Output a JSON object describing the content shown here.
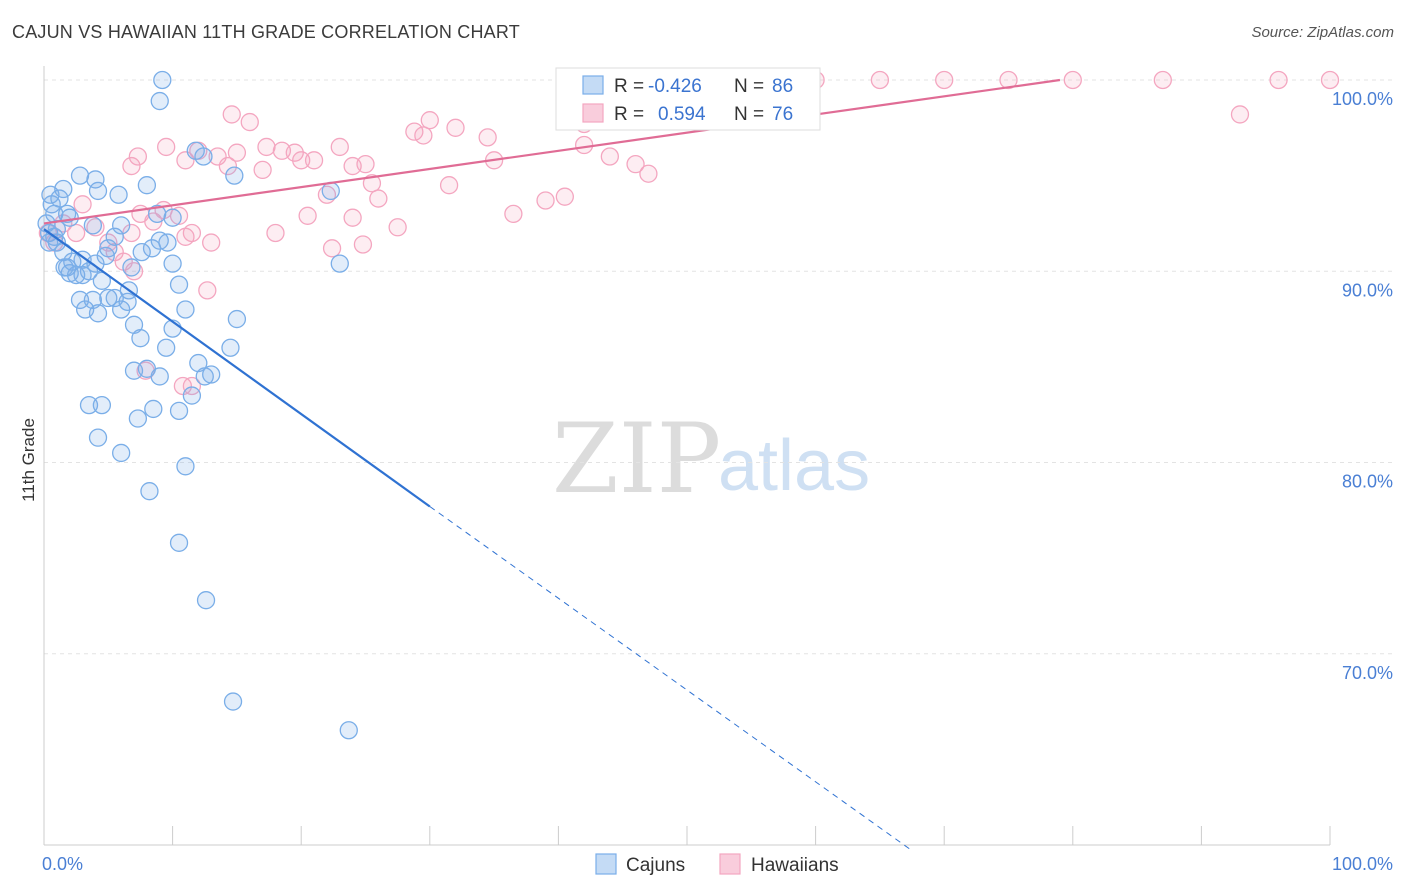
{
  "title": "CAJUN VS HAWAIIAN 11TH GRADE CORRELATION CHART",
  "source": "Source: ZipAtlas.com",
  "watermark": {
    "zip": "ZIP",
    "atlas": "atlas"
  },
  "chart_data": {
    "type": "scatter",
    "title": "CAJUN VS HAWAIIAN 11TH GRADE CORRELATION CHART",
    "xlabel": "",
    "ylabel": "11th Grade",
    "xlim": [
      0,
      100
    ],
    "ylim": [
      60,
      100
    ],
    "x_tick_labels": [
      "0.0%",
      "100.0%"
    ],
    "y_ticks": [
      {
        "value": 100,
        "label": "100.0%"
      },
      {
        "value": 90,
        "label": "90.0%"
      },
      {
        "value": 80,
        "label": "80.0%"
      },
      {
        "value": 70,
        "label": "70.0%"
      }
    ],
    "legend_stats": [
      {
        "r_label": "R =",
        "r_value": "-0.426",
        "n_label": "N =",
        "n_value": "86"
      },
      {
        "r_label": "R =",
        "r_value": "0.594",
        "n_label": "N =",
        "n_value": "76"
      }
    ],
    "series": [
      {
        "name": "Cajuns",
        "color": "#7aaee8",
        "line_color": "#2f72d2",
        "trend": {
          "x0": 0,
          "y0": 92.2,
          "x1": 30,
          "y1": 77.7,
          "dash_to_x": 67.3,
          "dash_to_y": 59.8
        },
        "points": [
          [
            0.2,
            92.5
          ],
          [
            0.4,
            92.0
          ],
          [
            0.6,
            93.5
          ],
          [
            0.8,
            93.0
          ],
          [
            0.5,
            94.0
          ],
          [
            1.0,
            92.2
          ],
          [
            1.2,
            93.8
          ],
          [
            1.5,
            94.3
          ],
          [
            1.8,
            93.0
          ],
          [
            2.0,
            92.8
          ],
          [
            1.0,
            91.5
          ],
          [
            1.5,
            91.0
          ],
          [
            1.8,
            90.2
          ],
          [
            2.2,
            90.5
          ],
          [
            2.5,
            89.8
          ],
          [
            3.0,
            90.6
          ],
          [
            3.5,
            90.0
          ],
          [
            4.0,
            90.4
          ],
          [
            4.5,
            89.5
          ],
          [
            2.8,
            88.5
          ],
          [
            3.2,
            88.0
          ],
          [
            3.8,
            88.5
          ],
          [
            4.2,
            87.8
          ],
          [
            5.0,
            88.6
          ],
          [
            5.5,
            88.6
          ],
          [
            6.0,
            88.0
          ],
          [
            6.5,
            88.4
          ],
          [
            7.0,
            87.2
          ],
          [
            5.5,
            91.8
          ],
          [
            6.0,
            92.4
          ],
          [
            2.8,
            95.0
          ],
          [
            4.0,
            94.8
          ],
          [
            4.2,
            94.2
          ],
          [
            5.8,
            94.0
          ],
          [
            8.0,
            94.5
          ],
          [
            8.4,
            91.2
          ],
          [
            9.0,
            91.6
          ],
          [
            10.0,
            90.4
          ],
          [
            10.5,
            89.3
          ],
          [
            9.5,
            86.0
          ],
          [
            10.0,
            87.0
          ],
          [
            11.0,
            88.0
          ],
          [
            7.5,
            86.5
          ],
          [
            8.0,
            84.9
          ],
          [
            9.0,
            84.5
          ],
          [
            7.0,
            84.8
          ],
          [
            12.0,
            85.2
          ],
          [
            12.5,
            84.5
          ],
          [
            13.0,
            84.6
          ],
          [
            11.5,
            83.5
          ],
          [
            3.5,
            83.0
          ],
          [
            4.5,
            83.0
          ],
          [
            4.2,
            81.3
          ],
          [
            6.0,
            80.5
          ],
          [
            7.3,
            82.3
          ],
          [
            8.5,
            82.8
          ],
          [
            10.5,
            82.7
          ],
          [
            11.0,
            79.8
          ],
          [
            8.2,
            78.5
          ],
          [
            10.5,
            75.8
          ],
          [
            12.6,
            72.8
          ],
          [
            14.7,
            67.5
          ],
          [
            23.7,
            66.0
          ],
          [
            15.0,
            87.5
          ],
          [
            14.5,
            86.0
          ],
          [
            22.3,
            94.2
          ],
          [
            23.0,
            90.4
          ],
          [
            14.8,
            95.0
          ],
          [
            11.8,
            96.3
          ],
          [
            12.4,
            96.0
          ],
          [
            9.0,
            98.9
          ],
          [
            9.2,
            100.0
          ],
          [
            2.0,
            89.9
          ],
          [
            3.0,
            89.8
          ],
          [
            1.6,
            90.2
          ],
          [
            0.4,
            91.5
          ],
          [
            0.8,
            91.8
          ],
          [
            6.6,
            89.0
          ],
          [
            7.6,
            91.0
          ],
          [
            5.0,
            91.2
          ],
          [
            8.8,
            93.0
          ],
          [
            10.0,
            92.8
          ],
          [
            3.8,
            92.4
          ],
          [
            4.8,
            90.8
          ],
          [
            6.8,
            90.2
          ],
          [
            9.6,
            91.5
          ]
        ]
      },
      {
        "name": "Hawaiians",
        "color": "#f4a6c0",
        "line_color": "#e06c95",
        "trend": {
          "x0": 0,
          "y0": 92.5,
          "x1": 79,
          "y1": 100.0
        },
        "points": [
          [
            0.3,
            92.0
          ],
          [
            0.8,
            91.5
          ],
          [
            1.5,
            92.5
          ],
          [
            2.5,
            92.0
          ],
          [
            3.0,
            93.5
          ],
          [
            4.0,
            92.3
          ],
          [
            5.0,
            91.5
          ],
          [
            5.5,
            91.0
          ],
          [
            6.2,
            90.5
          ],
          [
            6.8,
            92.0
          ],
          [
            7.5,
            93.0
          ],
          [
            8.5,
            92.6
          ],
          [
            9.3,
            93.2
          ],
          [
            10.5,
            92.9
          ],
          [
            11.0,
            91.8
          ],
          [
            11.5,
            92.0
          ],
          [
            13.0,
            91.5
          ],
          [
            7.0,
            90.0
          ],
          [
            12.7,
            89.0
          ],
          [
            10.8,
            84.0
          ],
          [
            7.9,
            84.8
          ],
          [
            11.5,
            84.0
          ],
          [
            6.8,
            95.5
          ],
          [
            7.3,
            96.0
          ],
          [
            9.5,
            96.5
          ],
          [
            11.0,
            95.8
          ],
          [
            12.0,
            96.3
          ],
          [
            13.5,
            96.0
          ],
          [
            14.3,
            95.5
          ],
          [
            15.0,
            96.2
          ],
          [
            14.6,
            98.2
          ],
          [
            16.0,
            97.8
          ],
          [
            17.3,
            96.5
          ],
          [
            17.0,
            95.3
          ],
          [
            18.5,
            96.3
          ],
          [
            19.5,
            96.2
          ],
          [
            20.0,
            95.8
          ],
          [
            21.0,
            95.8
          ],
          [
            22.0,
            94.0
          ],
          [
            23.0,
            96.5
          ],
          [
            24.0,
            95.5
          ],
          [
            25.0,
            95.6
          ],
          [
            26.0,
            93.8
          ],
          [
            27.5,
            92.3
          ],
          [
            28.8,
            97.3
          ],
          [
            29.5,
            97.1
          ],
          [
            30.0,
            97.9
          ],
          [
            31.5,
            94.5
          ],
          [
            32.0,
            97.5
          ],
          [
            34.5,
            97.0
          ],
          [
            35.0,
            95.8
          ],
          [
            36.5,
            93.0
          ],
          [
            39.0,
            93.7
          ],
          [
            40.5,
            93.9
          ],
          [
            42.0,
            96.6
          ],
          [
            42.0,
            97.7
          ],
          [
            44.0,
            96.0
          ],
          [
            46.0,
            95.6
          ],
          [
            47.0,
            95.1
          ],
          [
            50.0,
            99.0
          ],
          [
            55.0,
            100.0
          ],
          [
            60.0,
            100.0
          ],
          [
            65.0,
            100.0
          ],
          [
            70.0,
            100.0
          ],
          [
            75.0,
            100.0
          ],
          [
            80.0,
            100.0
          ],
          [
            87.0,
            100.0
          ],
          [
            93.0,
            98.2
          ],
          [
            96.0,
            100.0
          ],
          [
            100.0,
            100.0
          ],
          [
            18.0,
            92.0
          ],
          [
            20.5,
            92.9
          ],
          [
            24.0,
            92.8
          ],
          [
            22.4,
            91.2
          ],
          [
            24.8,
            91.4
          ],
          [
            25.5,
            94.6
          ]
        ]
      }
    ]
  }
}
